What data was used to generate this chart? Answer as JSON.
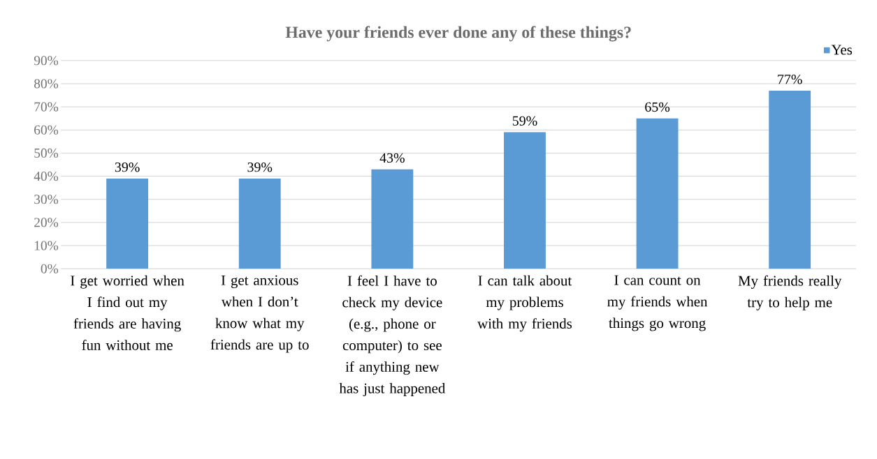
{
  "chart_data": {
    "type": "bar",
    "title": "Have your friends ever done any of these things?",
    "categories": [
      "I get worried when I find out my friends are having fun without me",
      "I get anxious when I don’t know what my friends are up to",
      "I feel I have to check my device (e.g., phone or computer) to see if anything new has just happened",
      "I can talk about my problems with my friends",
      "I can count on my friends when things go wrong",
      "My friends really try to help me"
    ],
    "series": [
      {
        "name": "Yes",
        "color": "#5b9bd5",
        "values": [
          39,
          39,
          43,
          59,
          65,
          77
        ],
        "value_labels": [
          "39%",
          "39%",
          "43%",
          "59%",
          "65%",
          "77%"
        ]
      }
    ],
    "ylim": [
      0,
      90
    ],
    "yticks": [
      {
        "value": 0,
        "label": "0%"
      },
      {
        "value": 10,
        "label": "10%"
      },
      {
        "value": 20,
        "label": "20%"
      },
      {
        "value": 30,
        "label": "30%"
      },
      {
        "value": 40,
        "label": "40%"
      },
      {
        "value": 50,
        "label": "50%"
      },
      {
        "value": 60,
        "label": "60%"
      },
      {
        "value": 70,
        "label": "70%"
      },
      {
        "value": 80,
        "label": "80%"
      },
      {
        "value": 90,
        "label": "90%"
      }
    ],
    "grid": "y",
    "legend": "top right"
  }
}
